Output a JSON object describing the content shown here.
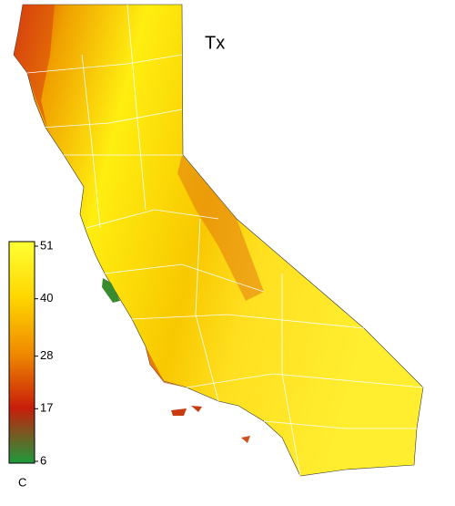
{
  "title": "Tx",
  "colorbar": {
    "ticks": [
      51,
      40,
      28,
      17,
      6
    ],
    "unit": "C",
    "colors": [
      "#ffff33",
      "#ffd700",
      "#f08c00",
      "#c81e0a",
      "#1e9a3c"
    ]
  }
}
